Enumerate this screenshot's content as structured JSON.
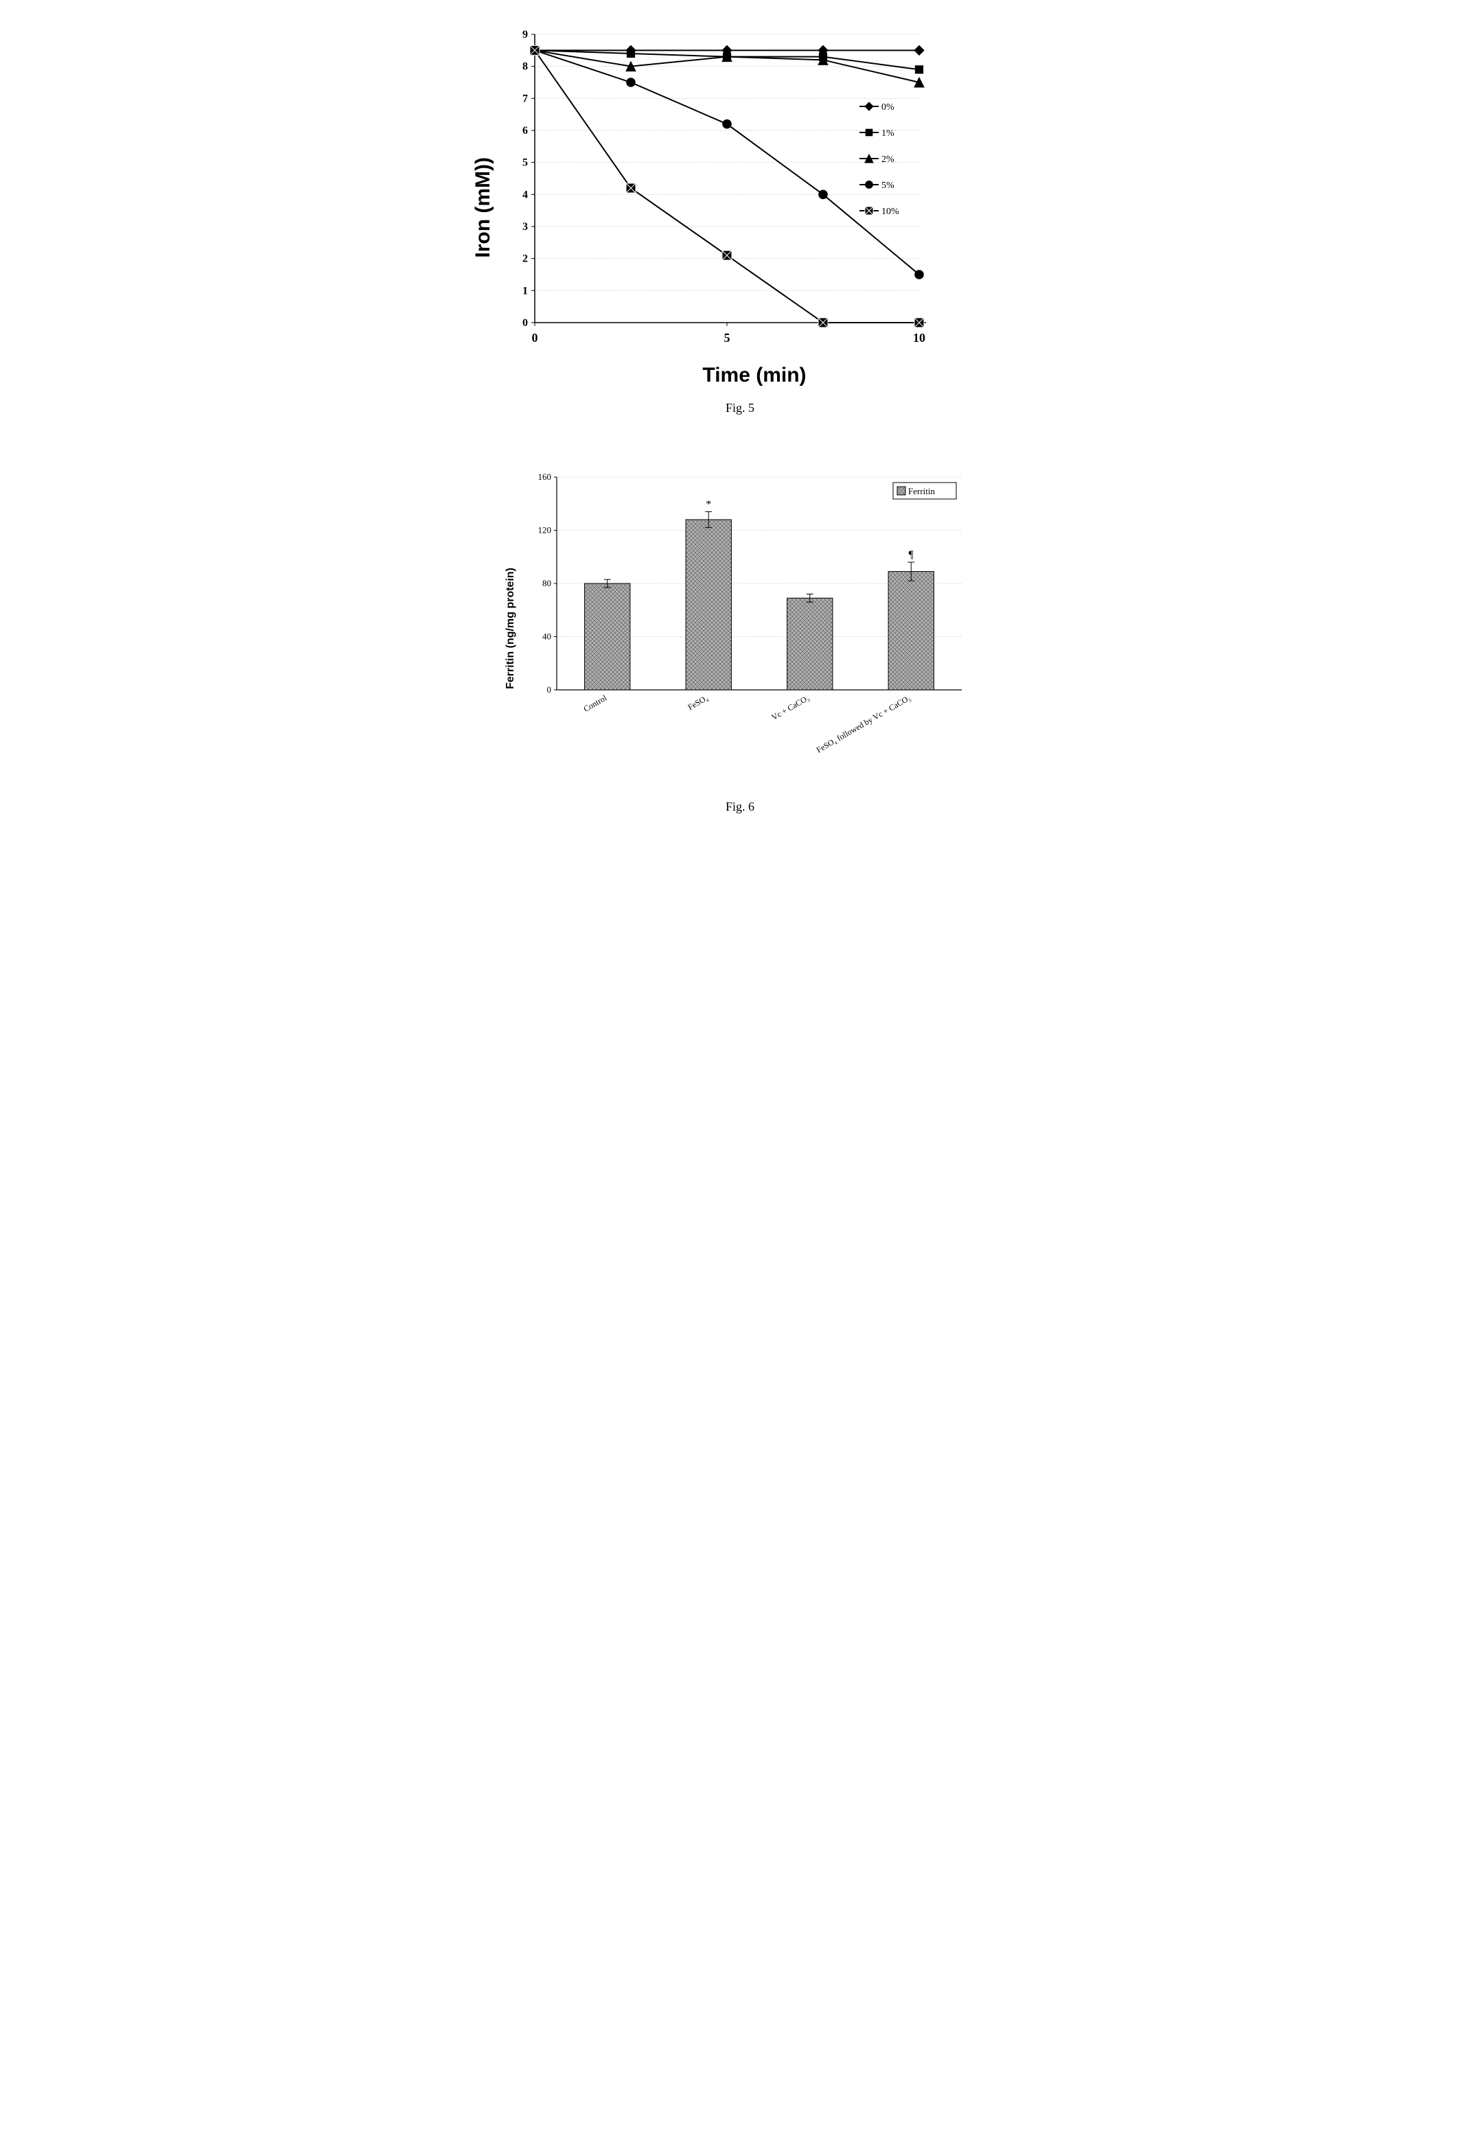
{
  "figure5": {
    "type": "line",
    "caption": "Fig. 5",
    "y_title": "Iron (mM))",
    "x_title": "Time (min)",
    "x_ticks": [
      0,
      5,
      10
    ],
    "y_ticks": [
      0,
      1,
      2,
      3,
      4,
      5,
      6,
      7,
      8,
      9
    ],
    "xlim": [
      0,
      10
    ],
    "ylim": [
      0,
      9
    ],
    "x_values": [
      0,
      2.5,
      5,
      7.5,
      10
    ],
    "plot_bg": "#ffffff",
    "grid_color": "#c0c0c0",
    "axis_color": "#000000",
    "tick_font_size": 16,
    "tick_font_weight": "bold",
    "title_font_size": 30,
    "legend_font_size": 14,
    "line_color": "#000000",
    "line_width": 2,
    "marker_size": 7,
    "series": [
      {
        "label": "0%",
        "marker": "diamond",
        "values": [
          8.5,
          8.5,
          8.5,
          8.5,
          8.5
        ]
      },
      {
        "label": "1%",
        "marker": "square",
        "values": [
          8.5,
          8.4,
          8.3,
          8.3,
          7.9
        ]
      },
      {
        "label": "2%",
        "marker": "triangle",
        "values": [
          8.5,
          8.0,
          8.3,
          8.2,
          7.5
        ]
      },
      {
        "label": "5%",
        "marker": "circle",
        "values": [
          8.5,
          7.5,
          6.2,
          4.0,
          1.5
        ]
      },
      {
        "label": "10%",
        "marker": "bigsquare",
        "values": [
          8.5,
          4.2,
          2.1,
          0.0,
          0.0
        ]
      }
    ]
  },
  "figure6": {
    "type": "bar",
    "caption": "Fig. 6",
    "y_title": "Ferritin (ng/mg protein)",
    "y_ticks": [
      0,
      40,
      80,
      120,
      160
    ],
    "ylim": [
      0,
      160
    ],
    "categories": [
      "Control",
      "FeSO₄",
      "Vc + CaCO₃",
      "FeSO₄ followed by Vc + CaCO₃"
    ],
    "values": [
      80,
      128,
      69,
      89
    ],
    "errors": [
      3,
      6,
      3,
      7
    ],
    "annotations": [
      "",
      "*",
      "",
      "¶"
    ],
    "bar_fill": "#b0b0b0",
    "bar_pattern": "crosshatch",
    "bar_border": "#000000",
    "plot_bg": "#ffffff",
    "grid_color": "#c0c0c0",
    "axis_color": "#000000",
    "tick_font_size": 13,
    "label_font_size": 12,
    "legend_label": "Ferritin",
    "bar_width": 0.45
  }
}
